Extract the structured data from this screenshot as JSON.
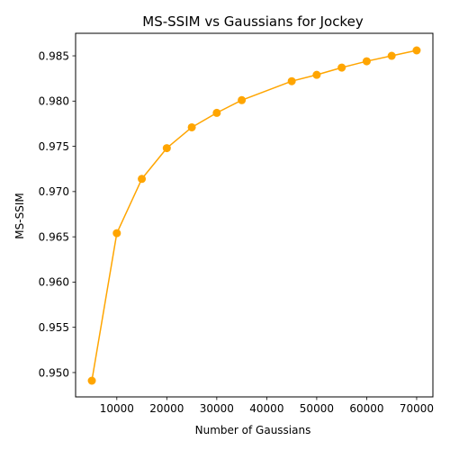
{
  "chart_data": {
    "type": "line",
    "title": "MS-SSIM vs Gaussians for Jockey",
    "xlabel": "Number of Gaussians",
    "ylabel": "MS-SSIM",
    "x": [
      5000,
      10000,
      15000,
      20000,
      25000,
      30000,
      35000,
      45000,
      50000,
      55000,
      60000,
      65000,
      70000
    ],
    "series": [
      {
        "name": "MS-SSIM",
        "values": [
          0.9491,
          0.9654,
          0.9714,
          0.9748,
          0.9771,
          0.9787,
          0.9801,
          0.9822,
          0.9829,
          0.9837,
          0.9844,
          0.985,
          0.9856
        ],
        "color": "#ffa500",
        "marker": "circle"
      }
    ],
    "xlim": [
      1750,
      73250
    ],
    "ylim": [
      0.94731,
      0.98749
    ],
    "xticks": [
      10000,
      20000,
      30000,
      40000,
      50000,
      60000,
      70000
    ],
    "xtick_labels": [
      "10000",
      "20000",
      "30000",
      "40000",
      "50000",
      "60000",
      "70000"
    ],
    "yticks": [
      0.95,
      0.955,
      0.96,
      0.965,
      0.97,
      0.975,
      0.98,
      0.985
    ],
    "ytick_labels": [
      "0.950",
      "0.955",
      "0.960",
      "0.965",
      "0.970",
      "0.975",
      "0.980",
      "0.985"
    ],
    "grid": false,
    "legend": "none"
  }
}
